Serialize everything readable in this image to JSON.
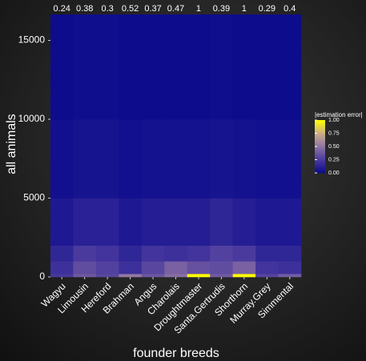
{
  "chart_data": {
    "type": "heatmap",
    "x_label": "founder breeds",
    "y_label": "all animals",
    "categories": [
      "Wagyu",
      "Limousin",
      "Hereford",
      "Brahman",
      "Angus",
      "Charolais",
      "Droughtmaster",
      "Santa.Gertrudis",
      "Shorthorn",
      "Murray.Grey",
      "Simmental"
    ],
    "max_error": [
      0.24,
      0.38,
      0.3,
      0.52,
      0.37,
      0.47,
      1,
      0.39,
      1,
      0.29,
      0.4
    ],
    "y_bins": [
      0,
      200,
      1000,
      2000,
      5000,
      10000,
      16650
    ],
    "z": [
      [
        0.24,
        0.2,
        0.15,
        0.08,
        0.03,
        0.01
      ],
      [
        0.38,
        0.33,
        0.25,
        0.12,
        0.05,
        0.02
      ],
      [
        0.3,
        0.28,
        0.22,
        0.12,
        0.05,
        0.02
      ],
      [
        0.52,
        0.2,
        0.15,
        0.08,
        0.03,
        0.01
      ],
      [
        0.37,
        0.3,
        0.22,
        0.1,
        0.04,
        0.01
      ],
      [
        0.47,
        0.42,
        0.2,
        0.1,
        0.04,
        0.01
      ],
      [
        1,
        0.35,
        0.22,
        0.1,
        0.04,
        0.01
      ],
      [
        0.39,
        0.33,
        0.28,
        0.14,
        0.05,
        0.02
      ],
      [
        1,
        0.42,
        0.25,
        0.1,
        0.04,
        0.01
      ],
      [
        0.29,
        0.22,
        0.15,
        0.08,
        0.03,
        0.01
      ],
      [
        0.4,
        0.2,
        0.15,
        0.08,
        0.03,
        0.01
      ]
    ],
    "ylim": [
      0,
      16650
    ],
    "yticks": [
      0,
      5000,
      10000,
      15000
    ],
    "colorbar_title": "|estimation error|",
    "colorbar_lim": [
      0,
      1
    ],
    "colorbar_ticks": [
      {
        "value": 0,
        "label": "0.00"
      },
      {
        "value": 0.25,
        "label": "0.25"
      },
      {
        "value": 0.5,
        "label": "0.50"
      },
      {
        "value": 0.75,
        "label": "0.75"
      },
      {
        "value": 1,
        "label": "1.00"
      }
    ],
    "color_stops": [
      "#0a0a8c",
      "#4a3a9e",
      "#8f74a4",
      "#cbae84",
      "#ffff00"
    ]
  }
}
